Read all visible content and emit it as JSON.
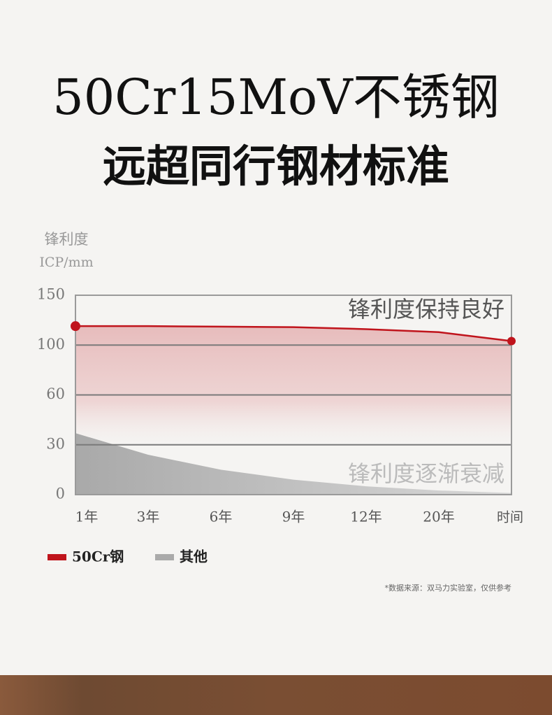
{
  "chart_data": {
    "type": "line",
    "title": "50Cr15MoV不锈钢",
    "subtitle": "远超同行钢材标准",
    "y_label": "锋利度",
    "y_unit": "ICP/mm",
    "x_label": "时间",
    "categories": [
      "1年",
      "3年",
      "6年",
      "9年",
      "12年",
      "20年",
      null
    ],
    "series": [
      {
        "name": "50Cr钢",
        "color": "#c0141c",
        "values": [
          119,
          119,
          118.5,
          118,
          116,
          113,
          104
        ]
      },
      {
        "name": "其他",
        "color": "#aaaaaa",
        "values": [
          37,
          24,
          15,
          9,
          5,
          2.5,
          1
        ]
      }
    ],
    "ylim": [
      0,
      150
    ],
    "yticks": [
      0,
      30,
      60,
      100,
      150
    ],
    "grid": true,
    "annotations": [
      "锋利度保持良好",
      "锋利度逐渐衰减"
    ],
    "footnote": "*数据来源：双马力实验室，仅供参考"
  }
}
